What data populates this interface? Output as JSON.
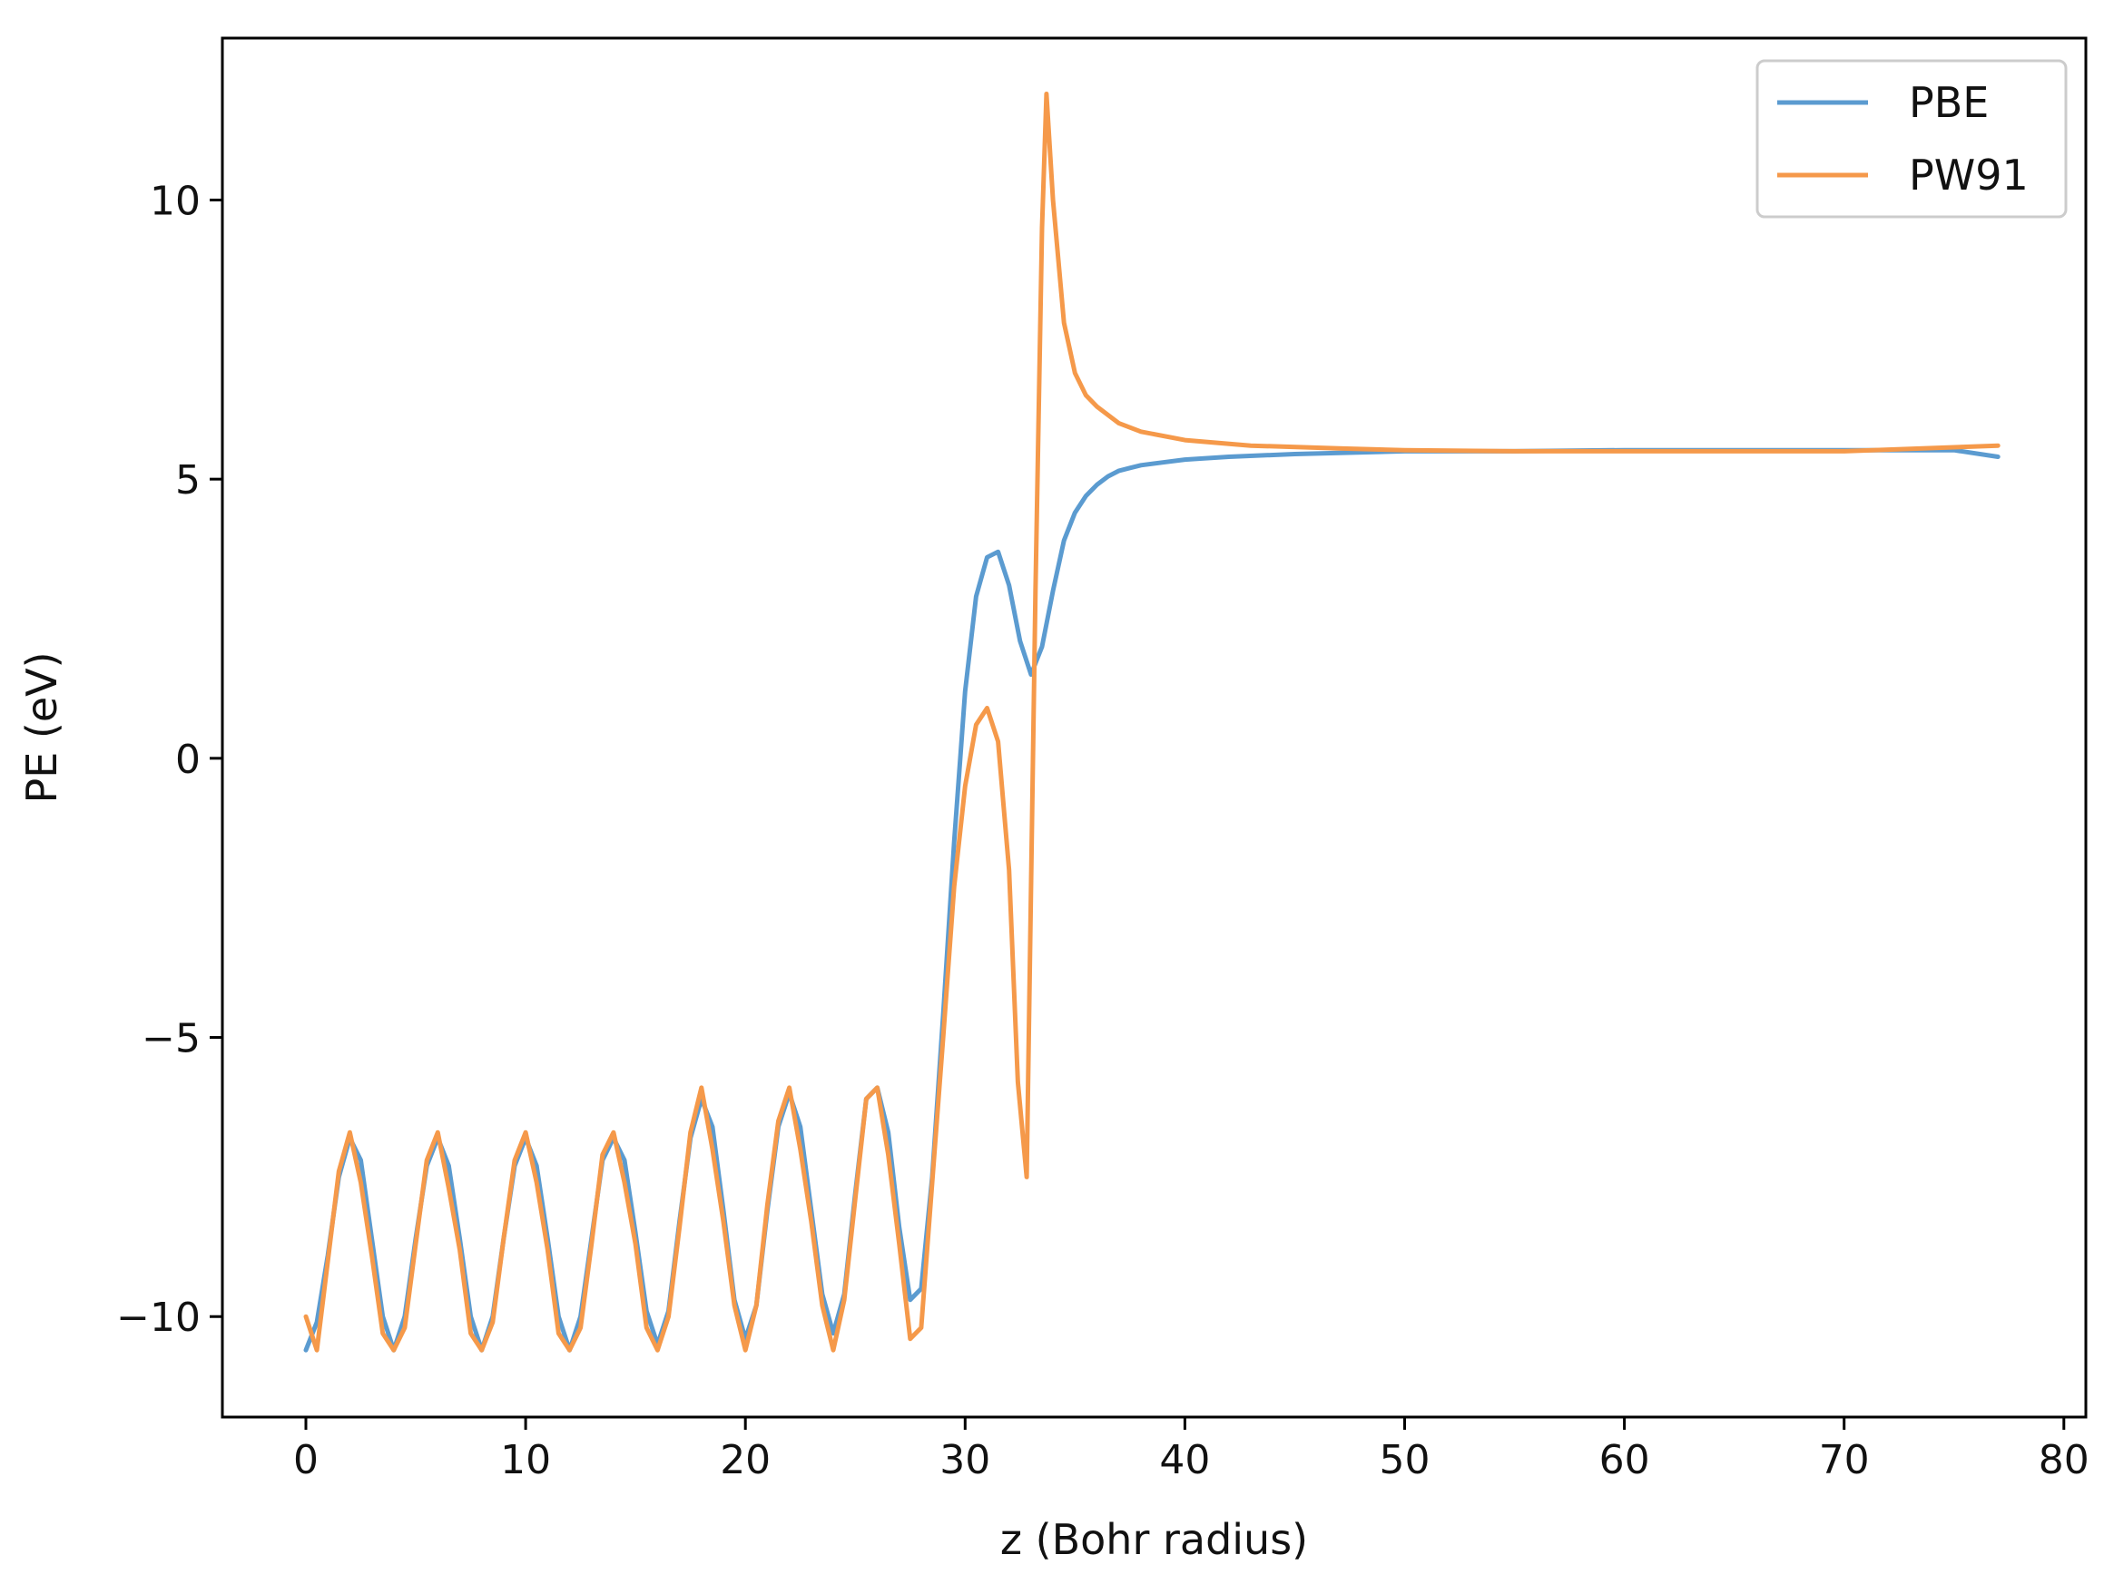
{
  "chart_data": {
    "type": "line",
    "title": "",
    "xlabel": "z (Bohr radius)",
    "ylabel": "PE (eV)",
    "xlim": [
      -3.8,
      81
    ],
    "ylim": [
      -11.8,
      12.9
    ],
    "xticks": [
      0,
      10,
      20,
      30,
      40,
      50,
      60,
      70,
      80
    ],
    "xtick_labels": [
      "0",
      "10",
      "20",
      "30",
      "40",
      "50",
      "60",
      "70",
      "80"
    ],
    "yticks": [
      -10,
      -5,
      0,
      5,
      10
    ],
    "ytick_labels": [
      "−10",
      "−5",
      "0",
      "5",
      "10"
    ],
    "grid": false,
    "legend": {
      "position": "top-right"
    },
    "series": [
      {
        "name": "PBE",
        "color": "#5b9bd0",
        "x": [
          0,
          0.5,
          1.0,
          1.5,
          2.0,
          2.5,
          3.0,
          3.5,
          4.0,
          4.5,
          5.0,
          5.5,
          6.0,
          6.5,
          7.0,
          7.5,
          8.0,
          8.5,
          9.0,
          9.5,
          10.0,
          10.5,
          11.0,
          11.5,
          12.0,
          12.5,
          13.0,
          13.5,
          14.0,
          14.5,
          15.0,
          15.5,
          16.0,
          16.5,
          17.0,
          17.5,
          18.0,
          18.5,
          19.0,
          19.5,
          20.0,
          20.5,
          21.0,
          21.5,
          22.0,
          22.5,
          23.0,
          23.5,
          24.0,
          24.5,
          25.0,
          25.5,
          26.0,
          26.5,
          27.0,
          27.5,
          28.0,
          28.5,
          29.0,
          29.5,
          30.0,
          30.5,
          31.0,
          31.5,
          32.0,
          32.5,
          33.0,
          33.5,
          34.0,
          34.5,
          35.0,
          35.5,
          36.0,
          36.5,
          37.0,
          37.5,
          38.0,
          39.0,
          40.0,
          42.0,
          45.0,
          50.0,
          55.0,
          60.0,
          65.0,
          70.0,
          75.0,
          77.0
        ],
        "y": [
          -10.6,
          -10.1,
          -8.9,
          -7.5,
          -6.8,
          -7.2,
          -8.6,
          -10.0,
          -10.6,
          -10.0,
          -8.6,
          -7.3,
          -6.8,
          -7.3,
          -8.6,
          -10.0,
          -10.6,
          -10.0,
          -8.6,
          -7.3,
          -6.8,
          -7.3,
          -8.6,
          -10.0,
          -10.6,
          -10.0,
          -8.6,
          -7.2,
          -6.8,
          -7.2,
          -8.5,
          -9.9,
          -10.5,
          -9.9,
          -8.3,
          -6.8,
          -6.1,
          -6.6,
          -8.1,
          -9.7,
          -10.4,
          -9.8,
          -8.1,
          -6.6,
          -6.0,
          -6.6,
          -8.1,
          -9.6,
          -10.3,
          -9.6,
          -7.8,
          -6.1,
          -5.9,
          -6.7,
          -8.4,
          -9.7,
          -9.5,
          -7.5,
          -4.6,
          -1.5,
          1.2,
          2.9,
          3.6,
          3.7,
          3.1,
          2.1,
          1.5,
          2.0,
          3.0,
          3.9,
          4.4,
          4.7,
          4.9,
          5.05,
          5.15,
          5.2,
          5.25,
          5.3,
          5.35,
          5.4,
          5.45,
          5.5,
          5.5,
          5.52,
          5.52,
          5.52,
          5.52,
          5.4
        ]
      },
      {
        "name": "PW91",
        "color": "#f5994a",
        "x": [
          0,
          0.5,
          1.0,
          1.5,
          2.0,
          2.5,
          3.0,
          3.5,
          4.0,
          4.5,
          5.0,
          5.5,
          6.0,
          6.5,
          7.0,
          7.5,
          8.0,
          8.5,
          9.0,
          9.5,
          10.0,
          10.5,
          11.0,
          11.5,
          12.0,
          12.5,
          13.0,
          13.5,
          14.0,
          14.5,
          15.0,
          15.5,
          16.0,
          16.5,
          17.0,
          17.5,
          18.0,
          18.5,
          19.0,
          19.5,
          20.0,
          20.5,
          21.0,
          21.5,
          22.0,
          22.5,
          23.0,
          23.5,
          24.0,
          24.5,
          25.0,
          25.5,
          26.0,
          26.5,
          27.0,
          27.5,
          28.0,
          28.5,
          29.0,
          29.5,
          30.0,
          30.5,
          31.0,
          31.5,
          32.0,
          32.4,
          32.8,
          33.2,
          33.5,
          33.7,
          34.0,
          34.5,
          35.0,
          35.5,
          36.0,
          37.0,
          38.0,
          40.0,
          43.0,
          47.0,
          50.0,
          55.0,
          60.0,
          70.0,
          77.0
        ],
        "y": [
          -10.0,
          -10.6,
          -9.0,
          -7.4,
          -6.7,
          -7.6,
          -8.9,
          -10.3,
          -10.6,
          -10.2,
          -8.7,
          -7.2,
          -6.7,
          -7.7,
          -8.8,
          -10.3,
          -10.6,
          -10.1,
          -8.6,
          -7.2,
          -6.7,
          -7.6,
          -8.8,
          -10.3,
          -10.6,
          -10.2,
          -8.7,
          -7.1,
          -6.7,
          -7.6,
          -8.7,
          -10.2,
          -10.6,
          -10.0,
          -8.4,
          -6.7,
          -5.9,
          -7.0,
          -8.3,
          -9.8,
          -10.6,
          -9.8,
          -8.0,
          -6.5,
          -5.9,
          -7.0,
          -8.3,
          -9.8,
          -10.6,
          -9.7,
          -7.9,
          -6.1,
          -5.9,
          -7.1,
          -8.7,
          -10.4,
          -10.2,
          -7.6,
          -5.0,
          -2.3,
          -0.5,
          0.6,
          0.9,
          0.3,
          -2.0,
          -5.8,
          -7.5,
          3.0,
          9.5,
          11.9,
          10.0,
          7.8,
          6.9,
          6.5,
          6.3,
          6.0,
          5.85,
          5.7,
          5.6,
          5.55,
          5.52,
          5.5,
          5.5,
          5.5,
          5.6
        ]
      }
    ]
  }
}
